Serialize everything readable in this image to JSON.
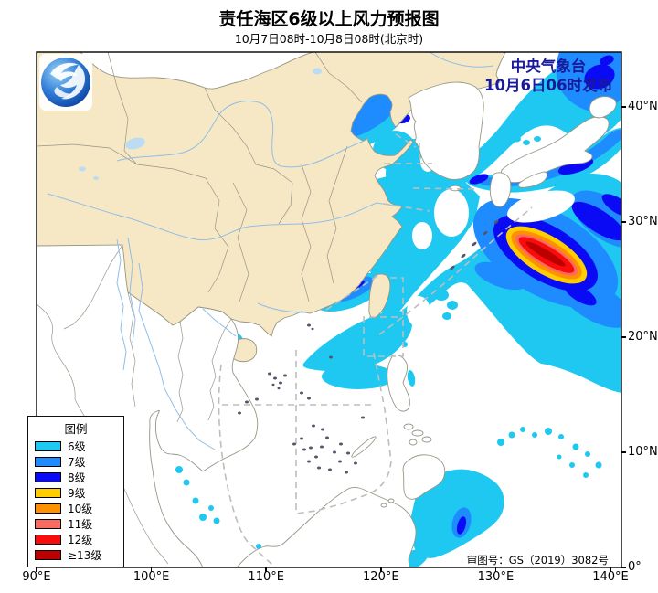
{
  "header": {
    "title": "责任海区6级以上风力预报图",
    "subtitle": "10月7日08时-10月8日08时(北京时)"
  },
  "issuer": {
    "line1": "中央气象台",
    "line2": "10月6日06时发布",
    "color": "#19199B"
  },
  "map_note": {
    "review_number": "审图号：GS（2019）3082号"
  },
  "legend": {
    "title": "图例",
    "items": [
      {
        "label": "6级",
        "key": "w6",
        "color": "#1FC8F0"
      },
      {
        "label": "7级",
        "key": "w7",
        "color": "#1E8CFF"
      },
      {
        "label": "8级",
        "key": "w8",
        "color": "#0A0AF5"
      },
      {
        "label": "9级",
        "key": "w9",
        "color": "#FFCD00"
      },
      {
        "label": "10级",
        "key": "w10",
        "color": "#FF9000"
      },
      {
        "label": "11级",
        "key": "w11",
        "color": "#F96A62"
      },
      {
        "label": "12级",
        "key": "w12",
        "color": "#F80C0C"
      },
      {
        "label": "≥13级",
        "key": "w13",
        "color": "#BC0000"
      }
    ]
  },
  "axes": {
    "x_ticks": [
      "90°E",
      "100°E",
      "110°E",
      "120°E",
      "130°E",
      "140°E"
    ],
    "y_ticks": [
      "0°",
      "10°N",
      "20°N",
      "30°N",
      "40°N"
    ]
  },
  "map_colors": {
    "land": "#F7E8C5",
    "sea": "#FFFFFF",
    "boundary": "#969686",
    "river": "#90BEE6",
    "lake": "#BBDCF2",
    "dashed_line": "#BDBDBD",
    "frame": "#000000",
    "issuer_text": "#19199B"
  }
}
